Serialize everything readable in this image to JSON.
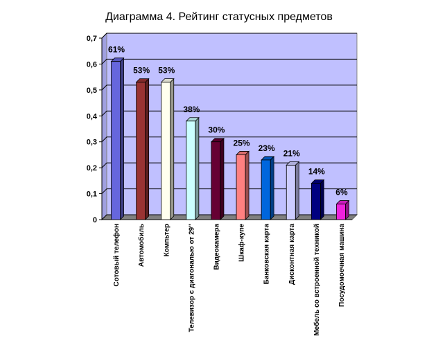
{
  "chart_data": {
    "type": "bar",
    "title": "Диаграмма 4. Рейтинг статусных предметов",
    "xlabel": "",
    "ylabel": "",
    "ylim": [
      0,
      0.7
    ],
    "yticks": [
      "0",
      "0,1",
      "0,2",
      "0,3",
      "0,4",
      "0,5",
      "0,6",
      "0,7"
    ],
    "grid": true,
    "legend": "none",
    "categories": [
      "Сотовый телефон",
      "Автомобиль",
      "Компьтер",
      "Телевизор с диагональю от 29\"",
      "Видеокамера",
      "Шкаф-купе",
      "Банковская карта",
      "Дисконтная карта",
      "Мебель со встроенной техникой",
      "Посудомоечная машина"
    ],
    "values": [
      0.61,
      0.53,
      0.53,
      0.38,
      0.3,
      0.25,
      0.23,
      0.21,
      0.14,
      0.06
    ],
    "data_labels": [
      "61%",
      "53%",
      "53%",
      "38%",
      "30%",
      "25%",
      "23%",
      "21%",
      "14%",
      "6%"
    ],
    "colors": [
      "#6666dd",
      "#993333",
      "#ffffee",
      "#ccffff",
      "#660033",
      "#ff8080",
      "#0066dd",
      "#ccccff",
      "#000080",
      "#ee22dd"
    ],
    "plot_background": "#c0c0ff"
  }
}
